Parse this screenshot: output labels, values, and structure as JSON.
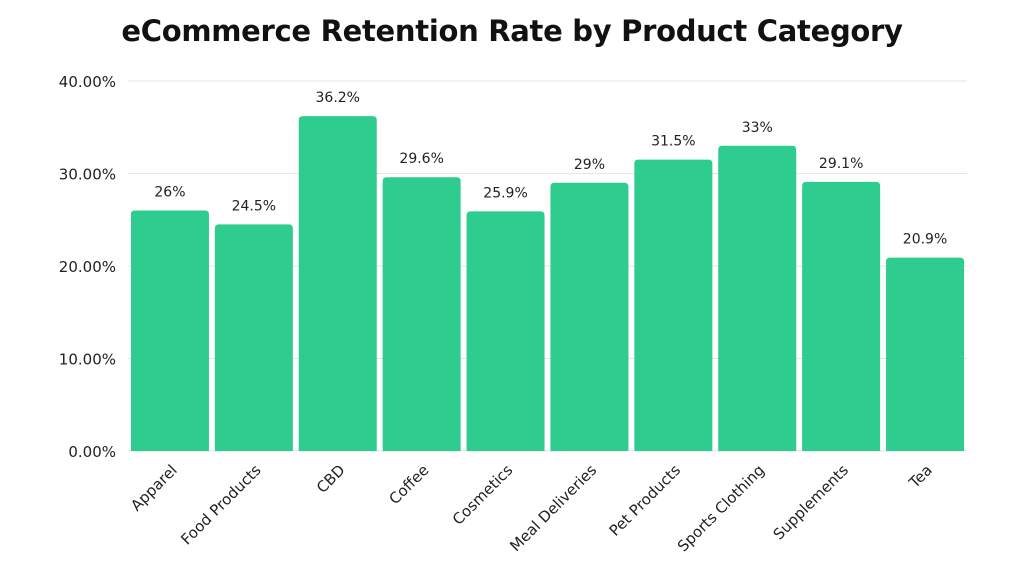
{
  "chart_data": {
    "type": "bar",
    "title": "eCommerce Retention Rate by Product Category",
    "xlabel": "",
    "ylabel": "",
    "categories": [
      "Apparel",
      "Food Products",
      "CBD",
      "Coffee",
      "Cosmetics",
      "Meal Deliveries",
      "Pet Products",
      "Sports Clothing",
      "Supplements",
      "Tea"
    ],
    "values": [
      26,
      24.5,
      36.2,
      29.6,
      25.9,
      29,
      31.5,
      33,
      29.1,
      20.9
    ],
    "data_labels": [
      "26%",
      "24.5%",
      "36.2%",
      "29.6%",
      "25.9%",
      "29%",
      "31.5%",
      "33%",
      "29.1%",
      "20.9%"
    ],
    "ylim": [
      0,
      40
    ],
    "yticks": [
      0,
      10,
      20,
      30,
      40
    ],
    "ytick_labels": [
      "0.00%",
      "10.00%",
      "20.00%",
      "30.00%",
      "40.00%"
    ],
    "grid": true,
    "legend": "none",
    "colors": {
      "bar": "#2ecc8e",
      "grid": "#e6e6e6",
      "text": "#222222"
    }
  }
}
